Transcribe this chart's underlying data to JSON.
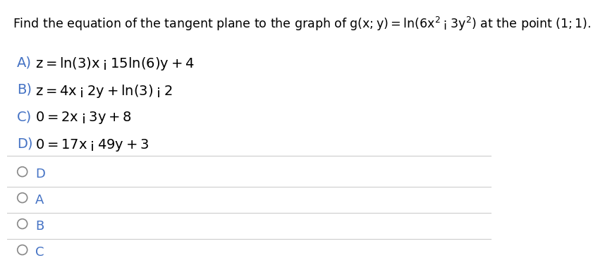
{
  "background_color": "#ffffff",
  "question_text": "Find the equation of the tangent plane to the graph of $g(x, y) = \\ln(6x^2 - 3y^2)$ at the point $(1, 1)$.",
  "question_prefix": "Find the equation of the tangent plane to the graph of ",
  "question_suffix": " at the point ",
  "choices": [
    {
      "label": "A)",
      "math": "$z = \\ln(3)x - 15\\ln(6)y + 4$"
    },
    {
      "label": "B)",
      "math": "$z = 4x - 2y + \\ln(3) - 2$"
    },
    {
      "label": "C)",
      "math": "$0 = 2x - 3y + 8$"
    },
    {
      "label": "D)",
      "math": "$0 = 17x - 49y + 3$"
    }
  ],
  "answer_options": [
    "D",
    "A",
    "B",
    "C"
  ],
  "divider_color": "#cccccc",
  "text_color": "#000000",
  "label_color": "#4472c4",
  "question_fontsize": 12.5,
  "choice_fontsize": 14,
  "answer_fontsize": 13,
  "circle_color": "#888888",
  "answer_label_color": "#4472c4"
}
